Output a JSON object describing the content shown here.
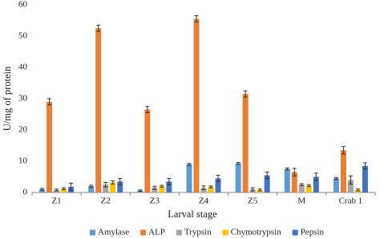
{
  "chart_data": {
    "type": "bar",
    "x_label": "Larval stage",
    "y_label": "U/mg of protein",
    "categories": [
      "Z1",
      "Z2",
      "Z3",
      "Z4",
      "Z5",
      "M",
      "Crab 1"
    ],
    "series": [
      {
        "name": "Amylase",
        "color": "#5b9bd5",
        "values": [
          1,
          2,
          0.6,
          9,
          9.3,
          7.5,
          4.5
        ],
        "errors": [
          0.3,
          0.3,
          0.2,
          0.3,
          0.3,
          0.3,
          0.3
        ]
      },
      {
        "name": "ALP",
        "color": "#ed7d31",
        "values": [
          29,
          52.5,
          26.5,
          55.5,
          31.5,
          6.5,
          13.5
        ],
        "errors": [
          1,
          1,
          1,
          1,
          1,
          1.2,
          1.2
        ]
      },
      {
        "name": "Trypsin",
        "color": "#a5a5a5",
        "values": [
          0.8,
          2.5,
          1.5,
          1.5,
          1,
          2.5,
          4
        ],
        "errors": [
          0.3,
          0.7,
          0.5,
          0.6,
          0.5,
          0.3,
          1.3
        ]
      },
      {
        "name": "Chymotrypsin",
        "color": "#ffc000",
        "values": [
          1.2,
          3.2,
          2,
          1.8,
          0.8,
          2.2,
          0.8
        ],
        "errors": [
          0.3,
          0.5,
          0.3,
          0.3,
          0.3,
          0.3,
          0.3
        ]
      },
      {
        "name": "Pepsin",
        "color": "#4472c4",
        "values": [
          1.8,
          3.5,
          3.5,
          4.5,
          5.5,
          5,
          8.5
        ],
        "errors": [
          1.2,
          1,
          1,
          1,
          1,
          1.2,
          1
        ]
      }
    ],
    "ylim": [
      0,
      60
    ],
    "yticks": [
      0,
      10,
      20,
      30,
      40,
      50,
      60
    ],
    "grid": false
  }
}
